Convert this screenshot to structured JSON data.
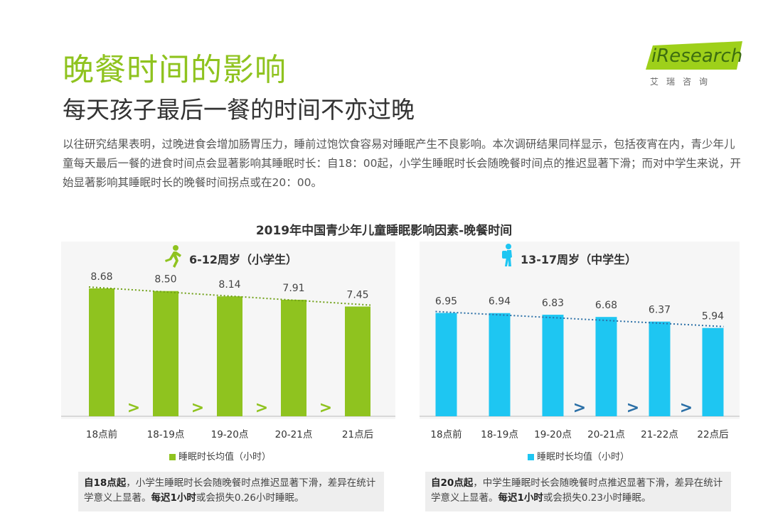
{
  "header": {
    "title": "晚餐时间的影响",
    "subtitle": "每天孩子最后一餐的时间不亦过晚",
    "logo_text": "iResearch",
    "logo_sub": "艾瑞咨询"
  },
  "intro_text": "以往研究结果表明，过晚进食会增加肠胃压力，睡前过饱饮食容易对睡眠产生不良影响。本次调研结果同样显示，包括夜宵在内，青少年儿童每天最后一餐的进食时间点会显著影响其睡眠时长：自18：00起，小学生睡眠时长会随晚餐时间点的推迟显著下滑；而对中学生来说，开始显著影响其睡眠时长的晚餐时间拐点或在20：00。",
  "chart_data": [
    {
      "type": "bar",
      "title": "2019年中国青少年儿童睡眠影响因素-晚餐时间",
      "group_title": "6-12周岁（小学生）",
      "categories": [
        "18点前",
        "18-19点",
        "19-20点",
        "20-21点",
        "21点后"
      ],
      "values": [
        8.68,
        8.5,
        8.14,
        7.91,
        7.45
      ],
      "value_labels": [
        "8.68",
        "8.50",
        "8.14",
        "7.91",
        "7.45"
      ],
      "series_name": "睡眠时长均值（小时）",
      "color": "#8fc31f",
      "arrow_color": "#8fc31f",
      "arrow_after": [
        0,
        1,
        2,
        3
      ],
      "trendline": true,
      "chevron": ">",
      "note_bold": "自18点起",
      "note_text": "，小学生睡眠时长会随晚餐时点推迟显著下滑，差异在统计学意义上显著。",
      "note_bold2": "每迟1小时",
      "note_text2": "或会损失0.26小时睡眠。"
    },
    {
      "type": "bar",
      "group_title": "13-17周岁（中学生）",
      "categories": [
        "18点前",
        "18-19点",
        "19-20点",
        "20-21点",
        "21-22点",
        "22点后"
      ],
      "values": [
        6.95,
        6.94,
        6.83,
        6.68,
        6.37,
        5.94
      ],
      "value_labels": [
        "6.95",
        "6.94",
        "6.83",
        "6.68",
        "6.37",
        "5.94"
      ],
      "series_name": "睡眠时长均值（小时）",
      "color": "#1ec6f2",
      "arrow_color": "#2a6fa6",
      "arrow_after": [
        2,
        3,
        4
      ],
      "trendline": true,
      "chevron": ">",
      "note_bold": "自20点起",
      "note_text": "，中学生睡眠时长会随晚餐时点推迟显著下滑，差异在统计学意义上显著。",
      "note_bold2": "每迟1小时",
      "note_text2": "或会损失0.23小时睡眠。"
    }
  ]
}
